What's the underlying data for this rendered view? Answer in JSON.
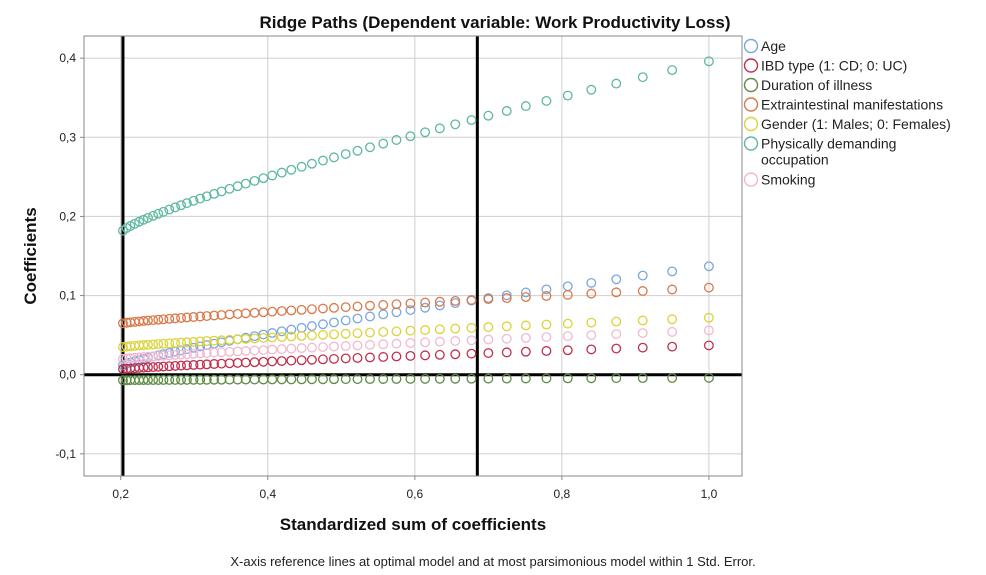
{
  "chart_data": {
    "type": "scatter",
    "title": "Ridge Paths (Dependent variable: Work Productivity Loss)",
    "xlabel": "Standardized sum of coefficients",
    "ylabel": "Coefficients",
    "footnote": "X-axis reference lines at optimal model and at most parsimonious model within 1 Std. Error.",
    "xlim": [
      0.15,
      1.045
    ],
    "ylim": [
      -0.128,
      0.428
    ],
    "x_ticks": [
      0.2,
      0.4,
      0.6,
      0.8,
      1.0
    ],
    "x_tick_labels": [
      "0,2",
      "0,4",
      "0,6",
      "0,8",
      "1,0"
    ],
    "y_ticks": [
      -0.1,
      0.0,
      0.1,
      0.2,
      0.3,
      0.4
    ],
    "y_tick_labels": [
      "-0,1",
      "0,0",
      "0,1",
      "0,2",
      "0,3",
      "0,4"
    ],
    "reference_lines": {
      "x": [
        0.203,
        0.685
      ],
      "y": [
        0.0
      ]
    },
    "grid": true,
    "legend_position": "right",
    "series": [
      {
        "name": "Age",
        "color": "#7aa6e0",
        "start": 0.012,
        "end": 0.137
      },
      {
        "name": "IBD type (1: CD; 0: UC)",
        "color": "#c0304e",
        "start": 0.007,
        "end": 0.037
      },
      {
        "name": "Duration of illness",
        "color": "#5e8c45",
        "start": -0.007,
        "end": -0.004
      },
      {
        "name": "Extraintestinal manifestations",
        "color": "#d9794a",
        "start": 0.065,
        "end": 0.11
      },
      {
        "name": "Gender (1: Males; 0: Females)",
        "color": "#dcd33a",
        "start": 0.035,
        "end": 0.072
      },
      {
        "name": "Physically demanding occupation",
        "color": "#5db8a2",
        "start": 0.182,
        "end": 0.396
      },
      {
        "name": "Smoking",
        "color": "#f1b9d0",
        "start": 0.02,
        "end": 0.056
      }
    ],
    "x_points": [
      0.203,
      0.208,
      0.213,
      0.219,
      0.225,
      0.231,
      0.237,
      0.244,
      0.251,
      0.258,
      0.266,
      0.274,
      0.282,
      0.29,
      0.299,
      0.308,
      0.317,
      0.327,
      0.337,
      0.348,
      0.359,
      0.37,
      0.382,
      0.394,
      0.406,
      0.419,
      0.432,
      0.446,
      0.46,
      0.475,
      0.49,
      0.506,
      0.522,
      0.539,
      0.557,
      0.575,
      0.594,
      0.614,
      0.634,
      0.655,
      0.677,
      0.7,
      0.725,
      0.751,
      0.779,
      0.808,
      0.84,
      0.874,
      0.91,
      0.95,
      1.0
    ]
  }
}
